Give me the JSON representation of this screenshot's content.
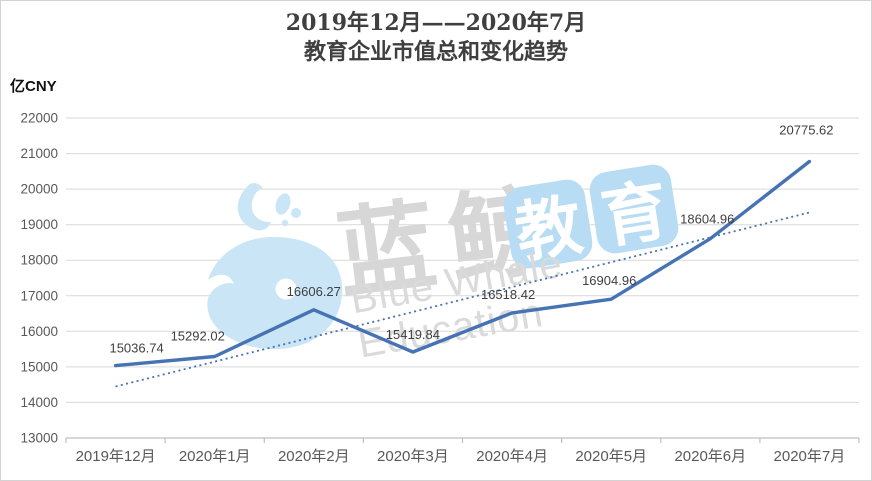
{
  "title": {
    "line1": "2019年12月——2020年7月",
    "line2": "教育企业市值总和变化趋势"
  },
  "y_axis_unit": "亿CNY",
  "watermark": {
    "cn_text": "蓝鲸",
    "tile1": "教",
    "tile2": "育",
    "en_text": "Blue Whale Education"
  },
  "colors": {
    "line": "#4573b3",
    "trend": "#4573b3",
    "grid": "#d9d9d9",
    "axis": "#bfbfbf",
    "tick_label": "#595959",
    "data_label": "#3f3f3f",
    "title": "#3f3f3f",
    "whale_blue": "#c9e5f6",
    "tile_blue": "#b7dcf3",
    "watermark_gray": "#d7d7d7"
  },
  "chart_data": {
    "type": "line",
    "title": "2019年12月——2020年7月 教育企业市值总和变化趋势",
    "ylabel": "亿CNY",
    "categories": [
      "2019年12月",
      "2020年1月",
      "2020年2月",
      "2020年3月",
      "2020年4月",
      "2020年5月",
      "2020年6月",
      "2020年7月"
    ],
    "series": [
      {
        "name": "教育企业市值总和",
        "values": [
          15036.74,
          15292.02,
          16606.27,
          15419.84,
          16518.42,
          16904.96,
          18604.96,
          20775.62
        ]
      }
    ],
    "data_labels": [
      "15036.74",
      "15292.02",
      "16606.27",
      "15419.84",
      "16518.42",
      "16904.96",
      "18604.96",
      "20775.62"
    ],
    "trendline": {
      "type": "linear",
      "style": "dotted"
    },
    "ylim": [
      13000,
      22000
    ],
    "ytick_step": 1000,
    "grid": true,
    "legend": "none"
  }
}
